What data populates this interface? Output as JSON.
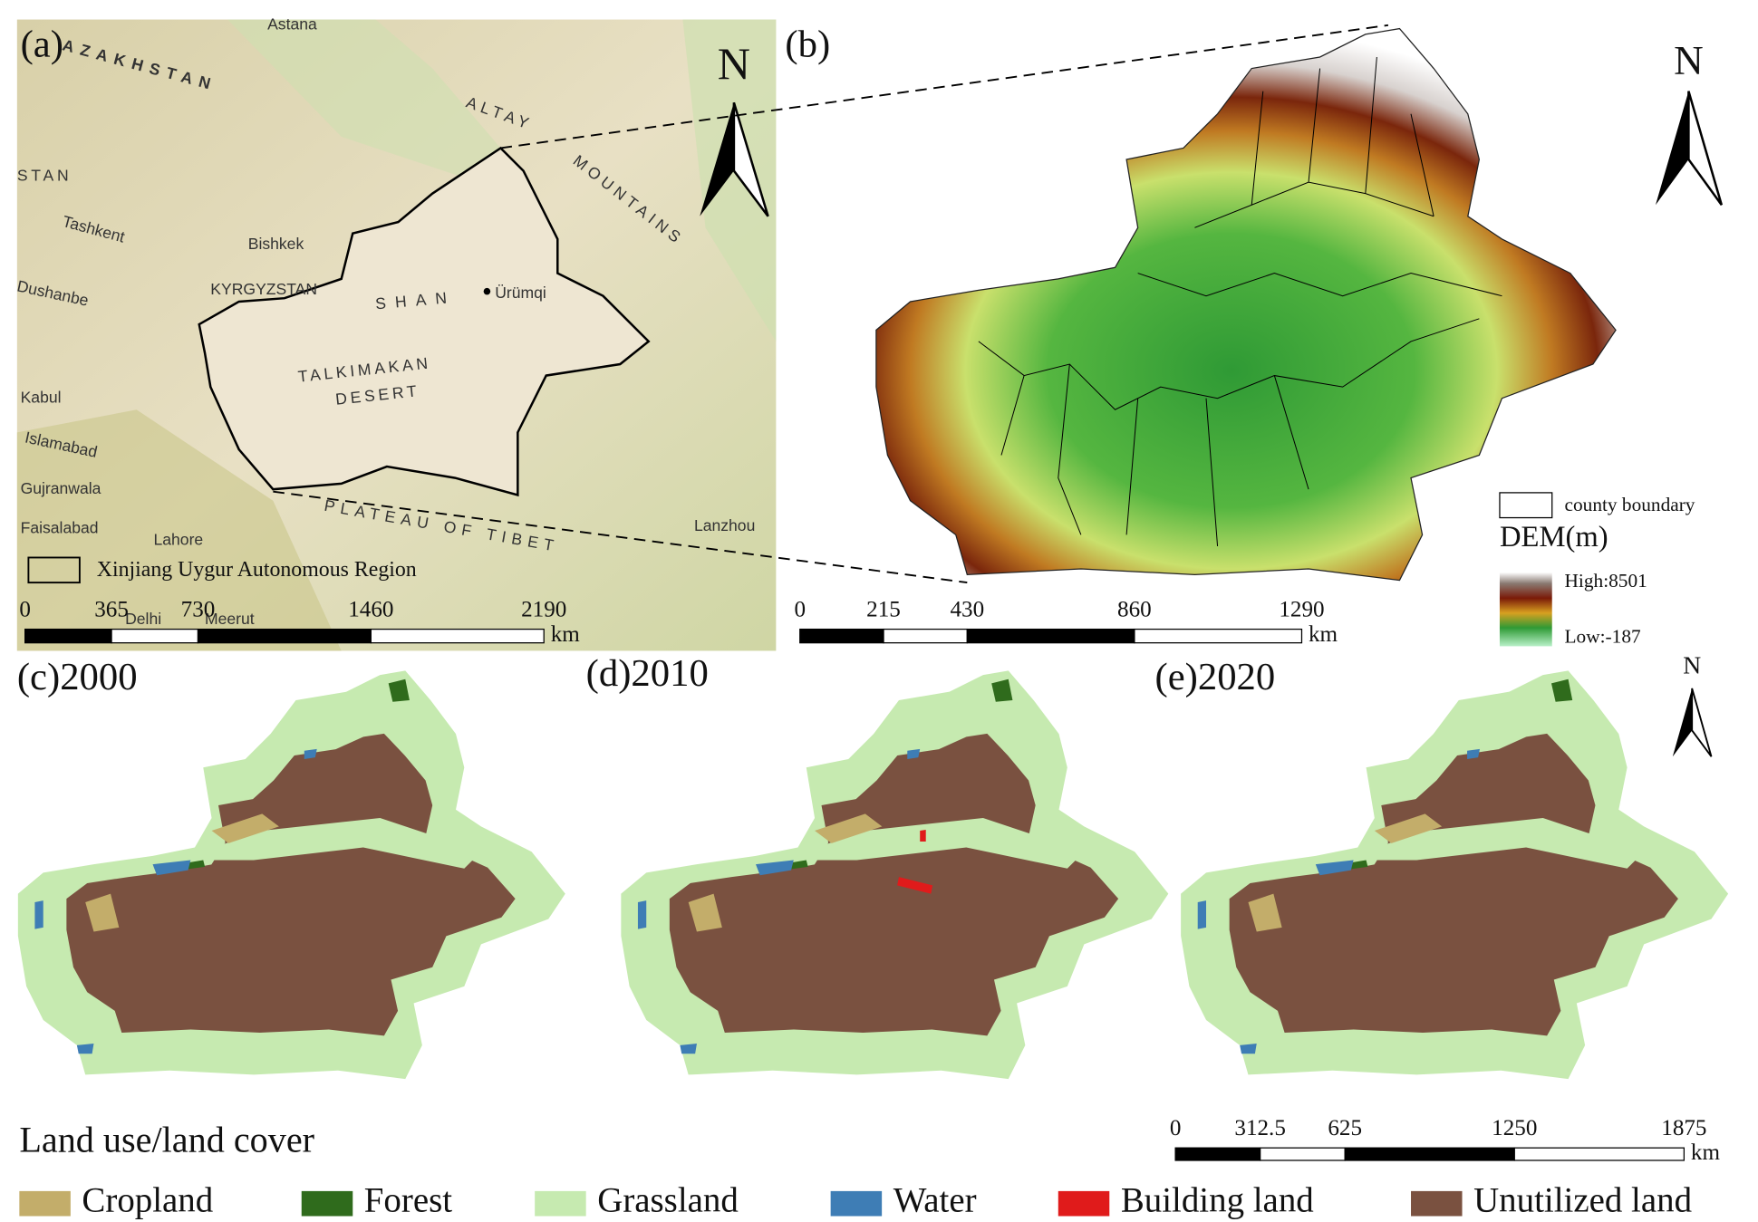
{
  "panel_a": {
    "label": "(a)",
    "north": "N",
    "places": [
      "Astana",
      "AZAKHSTAN",
      "ALTAY",
      "MOUNTAINS",
      "STAN",
      "Tashkent",
      "Bishkek",
      "KYRGYZSTAN",
      "Dushanbe",
      "SHAN",
      "Ürümqi",
      "TALKIMAKAN",
      "DESERT",
      "Kabul",
      "Islamabad",
      "Gujranwala",
      "Faisalabad",
      "Lahore",
      "PLATEAU OF TIBET",
      "Lanzhou",
      "Delhi",
      "Meerut"
    ],
    "boundary_legend": "Xinjiang Uygur Autonomous Region",
    "scale": {
      "ticks": [
        0,
        365,
        730,
        1460,
        2190
      ],
      "unit": "km"
    }
  },
  "panel_b": {
    "label": "(b)",
    "north": "N",
    "county_legend": "county boundary",
    "dem_title": "DEM(m)",
    "dem_high": "High:8501",
    "dem_low": "Low:-187",
    "scale": {
      "ticks": [
        0,
        215,
        430,
        860,
        1290
      ],
      "unit": "km"
    }
  },
  "panels_lulc": [
    {
      "label": "(c)2000"
    },
    {
      "label": "(d)2010"
    },
    {
      "label": "(e)2020"
    }
  ],
  "lulc_north": "N",
  "lulc_scale": {
    "ticks": [
      0,
      312.5,
      625,
      1250,
      1875
    ],
    "unit": "km"
  },
  "legend": {
    "title": "Land use/land cover",
    "items": [
      {
        "name": "Cropland",
        "color": "#c3ad6a"
      },
      {
        "name": "Forest",
        "color": "#2f6b1c"
      },
      {
        "name": "Grassland",
        "color": "#c6eab0"
      },
      {
        "name": "Water",
        "color": "#3e7db5"
      },
      {
        "name": "Building land",
        "color": "#e01b1b"
      },
      {
        "name": "Unutilized land",
        "color": "#7a5140"
      }
    ]
  }
}
